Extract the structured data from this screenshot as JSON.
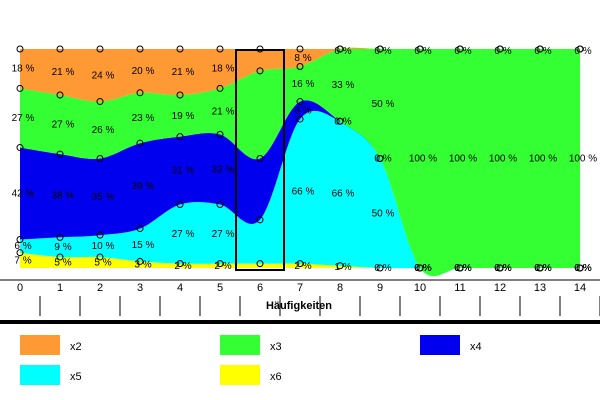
{
  "chart_data": {
    "type": "area",
    "stacked": true,
    "percent": true,
    "xlabel": "Häufigkeiten",
    "x": [
      0,
      1,
      2,
      3,
      4,
      5,
      6,
      7,
      8,
      9,
      10,
      11,
      12,
      13,
      14
    ],
    "xlim": [
      0,
      14
    ],
    "ylim": [
      0,
      100
    ],
    "highlight_x": 6,
    "legend_position": "bottom",
    "series": [
      {
        "name": "x6",
        "color": "#ffff00",
        "values": [
          7,
          5,
          5,
          3,
          2,
          2,
          2,
          2,
          1,
          0,
          0,
          0,
          0,
          0,
          0
        ],
        "labels": [
          "7 %",
          "5 %",
          "5 %",
          "3 %",
          "2 %",
          "2 %",
          "",
          "2 %",
          "1 %",
          "0 %",
          "0 %",
          "0 %",
          "0 %",
          "0 %",
          "0 %"
        ]
      },
      {
        "name": "x5",
        "color": "#00ffff",
        "values": [
          6,
          9,
          10,
          15,
          27,
          27,
          20,
          66,
          66,
          50,
          0,
          0,
          0,
          0,
          0
        ],
        "labels": [
          "6 %",
          "9 %",
          "10 %",
          "15 %",
          "27 %",
          "27 %",
          "",
          "66 %",
          "66 %",
          "50 %",
          "0 %",
          "0 %",
          "0 %",
          "0 %",
          "0 %"
        ]
      },
      {
        "name": "x4",
        "color": "#0000ee",
        "values": [
          42,
          38,
          35,
          39,
          31,
          32,
          28,
          8,
          0,
          0,
          0,
          0,
          0,
          0,
          0
        ],
        "labels": [
          "42 %",
          "38 %",
          "35 %",
          "39 %",
          "31 %",
          "32 %",
          "",
          "8 %",
          "0 %",
          "0 %",
          "0 %",
          "0 %",
          "0 %",
          "0 %",
          "0 %"
        ]
      },
      {
        "name": "x3",
        "color": "#33ff33",
        "values": [
          27,
          27,
          26,
          23,
          19,
          21,
          40,
          16,
          33,
          50,
          100,
          100,
          100,
          100,
          100
        ],
        "labels": [
          "27 %",
          "27 %",
          "26 %",
          "23 %",
          "19 %",
          "21 %",
          "",
          "16 %",
          "33 %",
          "50 %",
          "100 %",
          "100 %",
          "100 %",
          "100 %",
          "100 %"
        ]
      },
      {
        "name": "x2",
        "color": "#ff9933",
        "values": [
          18,
          21,
          24,
          20,
          21,
          18,
          10,
          8,
          0,
          0,
          0,
          0,
          0,
          0,
          0
        ],
        "labels": [
          "18 %",
          "21 %",
          "24 %",
          "20 %",
          "21 %",
          "18 %",
          "",
          "8 %",
          "0 %",
          "0 %",
          "0 %",
          "0 %",
          "0 %",
          "0 %",
          "0 %"
        ]
      }
    ],
    "legend_order": [
      "x2",
      "x3",
      "x4",
      "x5",
      "x6"
    ]
  }
}
